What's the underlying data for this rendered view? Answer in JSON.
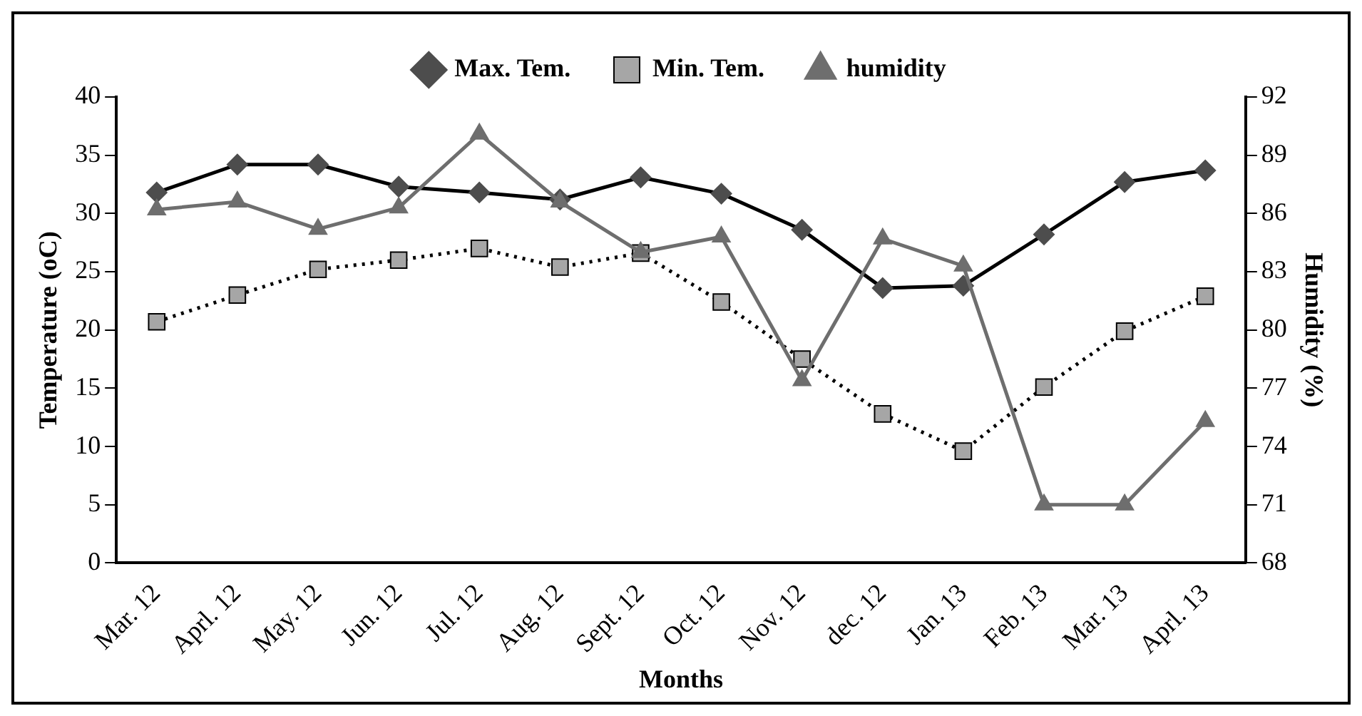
{
  "chart_data": {
    "type": "line",
    "xlabel": "Months",
    "ylabel": "Temperature (oC)",
    "y2label": "Humidity (%)",
    "categories": [
      "Mar. 12",
      "Aprl. 12",
      "May. 12",
      "Jun. 12",
      "Jul. 12",
      "Aug. 12",
      "Sept. 12",
      "Oct. 12",
      "Nov. 12",
      "dec. 12",
      "Jan. 13",
      "Feb. 13",
      "Mar. 13",
      "Aprl. 13"
    ],
    "series": [
      {
        "name": "Max. Tem.",
        "color": "#4d4d4d",
        "marker": "diamond",
        "line_style": "solid",
        "values": [
          31.8,
          34.2,
          34.2,
          32.3,
          31.8,
          31.2,
          33.1,
          31.7,
          28.6,
          23.6,
          23.8,
          28.2,
          32.7,
          33.7
        ]
      },
      {
        "name": "Min. Tem.",
        "color": "#a6a6a6",
        "marker": "square",
        "line_style": "dotted",
        "values": [
          20.7,
          23.0,
          25.2,
          26.0,
          27.0,
          25.4,
          26.6,
          22.4,
          17.5,
          12.8,
          9.6,
          15.1,
          19.9,
          22.9
        ]
      },
      {
        "name": "humidity",
        "color": "#6e6e6e",
        "marker": "triangle",
        "line_style": "solid",
        "axis": "y2",
        "values": [
          86.2,
          86.6,
          85.2,
          86.3,
          90.1,
          86.6,
          84.0,
          84.8,
          77.4,
          84.7,
          83.3,
          71.0,
          71.0,
          75.3
        ]
      }
    ],
    "ylim": [
      0,
      40
    ],
    "yticks": [
      0,
      5,
      10,
      15,
      20,
      25,
      30,
      35,
      40
    ],
    "y2lim": [
      68,
      92
    ],
    "y2ticks": [
      68,
      71,
      74,
      77,
      80,
      83,
      86,
      89,
      92
    ],
    "grid": false,
    "legend": "top"
  }
}
